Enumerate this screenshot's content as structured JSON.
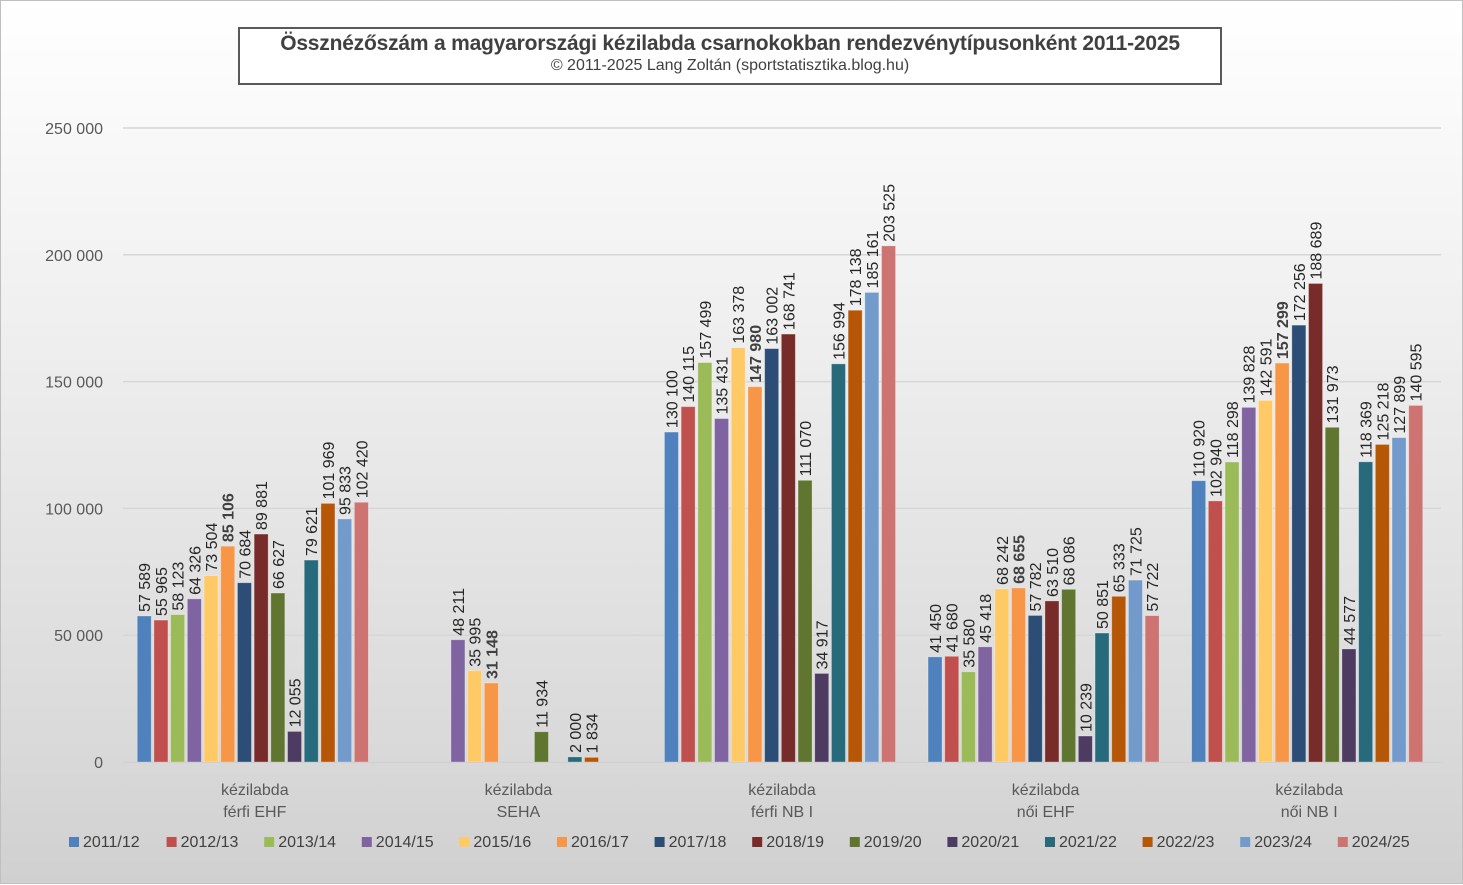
{
  "chart_data": {
    "type": "bar",
    "title": "Össznézőszám a magyarországi kézilabda csarnokokban rendezvénytípusonként 2011-2025",
    "subtitle": "© 2011-2025 Lang Zoltán (sportstatisztika.blog.hu)",
    "xlabel": "",
    "ylabel": "",
    "ylim": [
      0,
      250000
    ],
    "yticks": [
      0,
      50000,
      100000,
      150000,
      200000,
      250000
    ],
    "ytick_labels": [
      "0",
      "50 000",
      "100 000",
      "150 000",
      "200 000",
      "250 000"
    ],
    "grid": true,
    "legend_position": "bottom",
    "categories": [
      [
        "kézilabda",
        "férfi EHF"
      ],
      [
        "kézilabda",
        "SEHA"
      ],
      [
        "kézilabda",
        "férfi NB I"
      ],
      [
        "kézilabda",
        "női EHF"
      ],
      [
        "kézilabda",
        "női NB I"
      ]
    ],
    "series": [
      {
        "name": "2011/12",
        "color": "#4f81bd",
        "values": [
          57589,
          null,
          130100,
          41450,
          110920
        ],
        "labels": [
          "57 589",
          null,
          "130 100",
          "41 450",
          "110 920"
        ]
      },
      {
        "name": "2012/13",
        "color": "#c0504d",
        "values": [
          55965,
          null,
          140115,
          41680,
          102940
        ],
        "labels": [
          "55 965",
          null,
          "140 115",
          "41 680",
          "102 940"
        ]
      },
      {
        "name": "2013/14",
        "color": "#9bbb59",
        "values": [
          58123,
          null,
          157499,
          35580,
          118298
        ],
        "labels": [
          "58 123",
          null,
          "157 499",
          "35 580",
          "118 298"
        ]
      },
      {
        "name": "2014/15",
        "color": "#8064a2",
        "values": [
          64326,
          48211,
          135431,
          45418,
          139828
        ],
        "labels": [
          "64 326",
          "48 211",
          "135 431",
          "45 418",
          "139 828"
        ]
      },
      {
        "name": "2015/16",
        "color": "#ffc966",
        "values": [
          73504,
          35995,
          163378,
          68242,
          142591
        ],
        "labels": [
          "73 504",
          "35 995",
          "163 378",
          "68 242",
          "142 591"
        ]
      },
      {
        "name": "2016/17",
        "color": "#f79646",
        "values": [
          85106,
          31148,
          147980,
          68655,
          157299
        ],
        "labels": [
          "85 106",
          "31 148",
          "147 980",
          "68 655",
          "157 299"
        ],
        "bold_labels": true
      },
      {
        "name": "2017/18",
        "color": "#2c4d75",
        "values": [
          70684,
          null,
          163002,
          57782,
          172256
        ],
        "labels": [
          "70 684",
          null,
          "163 002",
          "57 782",
          "172 256"
        ]
      },
      {
        "name": "2018/19",
        "color": "#772c2a",
        "values": [
          89881,
          null,
          168741,
          63510,
          188689
        ],
        "labels": [
          "89 881",
          null,
          "168 741",
          "63 510",
          "188 689"
        ]
      },
      {
        "name": "2019/20",
        "color": "#5f7530",
        "values": [
          66627,
          11934,
          111070,
          68086,
          131973
        ],
        "labels": [
          "66 627",
          "11 934",
          "111 070",
          "68 086",
          "131 973"
        ]
      },
      {
        "name": "2020/21",
        "color": "#4d3b62",
        "values": [
          12055,
          null,
          34917,
          10239,
          44577
        ],
        "labels": [
          "12 055",
          null,
          "34 917",
          "10 239",
          "44 577"
        ]
      },
      {
        "name": "2021/22",
        "color": "#276a7c",
        "values": [
          79621,
          2000,
          156994,
          50851,
          118369
        ],
        "labels": [
          "79 621",
          "2 000",
          "156 994",
          "50 851",
          "118 369"
        ]
      },
      {
        "name": "2022/23",
        "color": "#b65708",
        "values": [
          101969,
          1834,
          178138,
          65333,
          125218
        ],
        "labels": [
          "101 969",
          "1 834",
          "178 138",
          "65 333",
          "125 218"
        ]
      },
      {
        "name": "2023/24",
        "color": "#729aca",
        "values": [
          95833,
          null,
          185161,
          71725,
          127899
        ],
        "labels": [
          "95 833",
          null,
          "185 161",
          "71 725",
          "127 899"
        ]
      },
      {
        "name": "2024/25",
        "color": "#cd7371",
        "values": [
          102420,
          null,
          203525,
          57722,
          140595
        ],
        "labels": [
          "102 420",
          null,
          "203 525",
          "57 722",
          "140 595"
        ]
      }
    ]
  }
}
